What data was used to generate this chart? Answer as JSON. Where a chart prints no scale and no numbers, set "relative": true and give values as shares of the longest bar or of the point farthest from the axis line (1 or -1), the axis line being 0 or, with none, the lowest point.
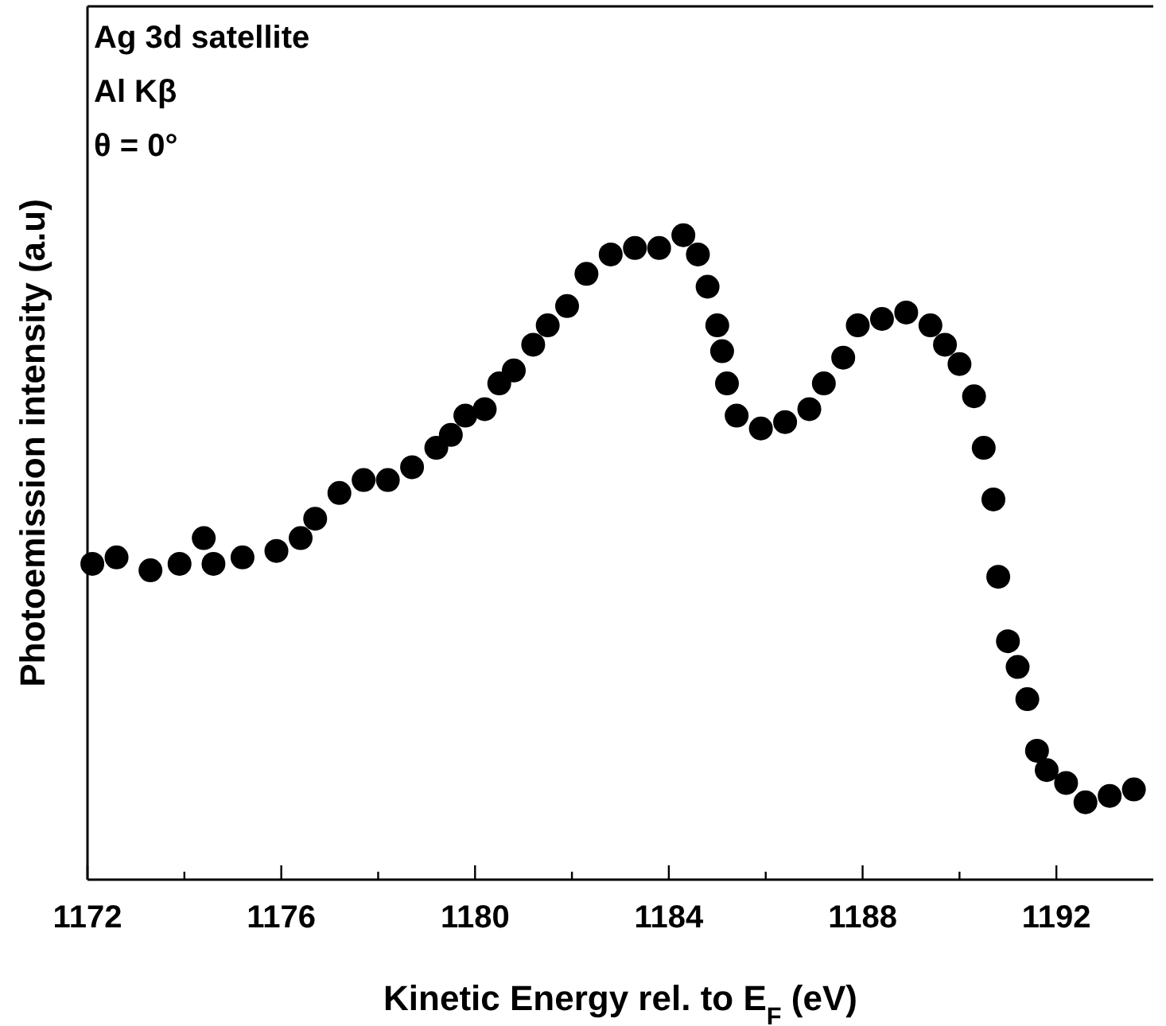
{
  "chart_data": {
    "type": "scatter",
    "relative": true,
    "xlabel": "Kinetic Energy rel. to E$_{F}$ (eV)",
    "ylabel": "Photoemission  intensity (a.u)",
    "annotations": [
      "Ag 3d satellite",
      "Al Kβ",
      "θ = 0°"
    ],
    "xlim": [
      1172,
      1194
    ],
    "xticks": [
      1172,
      {
        "value": 1174,
        "label": null
      },
      1176,
      {
        "value": 1178,
        "label": null
      },
      1180,
      {
        "value": 1182,
        "label": null
      },
      1184,
      {
        "value": 1186,
        "label": null
      },
      1188,
      {
        "value": 1190,
        "label": null
      },
      1192
    ],
    "marker": "circle",
    "grid": false,
    "series": [
      {
        "color": "#000000",
        "x": [
          1172.1,
          1172.6,
          1173.3,
          1173.9,
          1174.4,
          1174.6,
          1175.2,
          1175.9,
          1176.4,
          1176.7,
          1177.2,
          1177.7,
          1178.2,
          1178.7,
          1179.2,
          1179.5,
          1179.8,
          1180.2,
          1180.5,
          1180.8,
          1181.2,
          1181.5,
          1181.9,
          1182.3,
          1182.8,
          1183.3,
          1183.8,
          1184.3,
          1184.6,
          1184.8,
          1185.0,
          1185.1,
          1185.2,
          1185.4,
          1185.9,
          1186.4,
          1186.9,
          1187.2,
          1187.6,
          1187.9,
          1188.4,
          1188.9,
          1189.4,
          1189.7,
          1190.0,
          1190.3,
          1190.5,
          1190.7,
          1190.8,
          1191.0,
          1191.2,
          1191.4,
          1191.6,
          1191.8,
          1192.2,
          1192.6,
          1193.1,
          1193.6
        ],
        "values": [
          0.49,
          0.5,
          0.48,
          0.49,
          0.53,
          0.49,
          0.5,
          0.51,
          0.53,
          0.56,
          0.6,
          0.62,
          0.62,
          0.64,
          0.67,
          0.69,
          0.72,
          0.73,
          0.77,
          0.79,
          0.83,
          0.86,
          0.89,
          0.94,
          0.97,
          0.98,
          0.98,
          1.0,
          0.97,
          0.92,
          0.86,
          0.82,
          0.77,
          0.72,
          0.7,
          0.71,
          0.73,
          0.77,
          0.81,
          0.86,
          0.87,
          0.88,
          0.86,
          0.83,
          0.8,
          0.75,
          0.67,
          0.59,
          0.47,
          0.37,
          0.33,
          0.28,
          0.2,
          0.17,
          0.15,
          0.12,
          0.13,
          0.14
        ]
      }
    ]
  }
}
